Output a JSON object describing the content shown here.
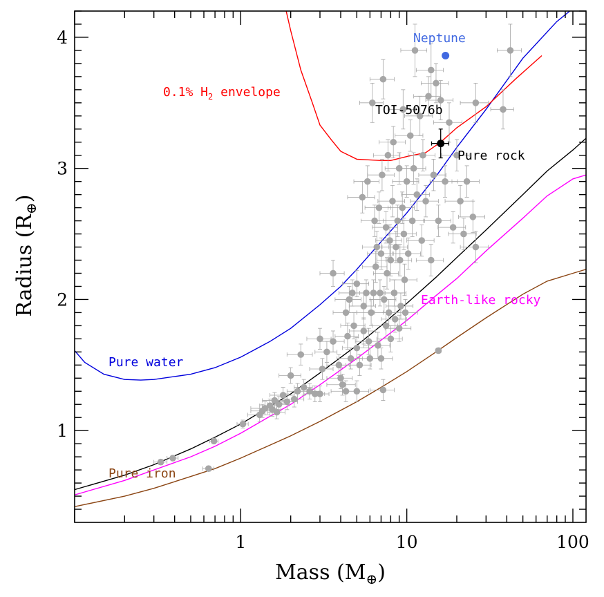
{
  "chart_data": {
    "type": "scatter",
    "xlabel": "Mass (M⊕)",
    "ylabel": "Radius (R⊕)",
    "xlabel_text": "Mass (M",
    "ylabel_text": "Radius (R",
    "x_scale": "log",
    "xlim": [
      0.1,
      120
    ],
    "ylim": [
      0.3,
      4.2
    ],
    "x_tick_labels": [
      "1",
      "10",
      "100"
    ],
    "y_tick_labels": [
      "1",
      "2",
      "3",
      "4"
    ],
    "grid": false,
    "colors": {
      "data_points": "#a6a6a6",
      "target": "#000000",
      "neptune": "#4169e1",
      "envelope": "#ff0000",
      "water": "#0000dd",
      "rock": "#000000",
      "earth_like": "#ff00ff",
      "iron": "#8b4513"
    },
    "target": {
      "label": "TOI-5076b",
      "mass": 16.0,
      "mass_err": 1.9,
      "radius": 3.19,
      "radius_err": 0.11
    },
    "neptune": {
      "label": "Neptune",
      "mass": 17.1,
      "radius": 3.86
    },
    "curves": [
      {
        "name": "Pure water",
        "color": "#0000dd",
        "points": [
          [
            0.1,
            1.61
          ],
          [
            0.115,
            1.52
          ],
          [
            0.15,
            1.43
          ],
          [
            0.2,
            1.39
          ],
          [
            0.25,
            1.385
          ],
          [
            0.3,
            1.39
          ],
          [
            0.5,
            1.43
          ],
          [
            0.7,
            1.48
          ],
          [
            1,
            1.56
          ],
          [
            1.5,
            1.68
          ],
          [
            2,
            1.78
          ],
          [
            3,
            1.96
          ],
          [
            4,
            2.1
          ],
          [
            5,
            2.23
          ],
          [
            7,
            2.44
          ],
          [
            10,
            2.66
          ],
          [
            15,
            2.94
          ],
          [
            20,
            3.16
          ],
          [
            30,
            3.45
          ],
          [
            50,
            3.84
          ],
          [
            80,
            4.12
          ],
          [
            120,
            4.3
          ]
        ]
      },
      {
        "name": "Pure rock",
        "color": "#000000",
        "points": [
          [
            0.1,
            0.55
          ],
          [
            0.2,
            0.66
          ],
          [
            0.3,
            0.74
          ],
          [
            0.5,
            0.86
          ],
          [
            0.7,
            0.95
          ],
          [
            1,
            1.05
          ],
          [
            2,
            1.28
          ],
          [
            3,
            1.44
          ],
          [
            5,
            1.65
          ],
          [
            7,
            1.8
          ],
          [
            10,
            1.97
          ],
          [
            15,
            2.17
          ],
          [
            20,
            2.32
          ],
          [
            30,
            2.53
          ],
          [
            50,
            2.8
          ],
          [
            70,
            2.98
          ],
          [
            100,
            3.14
          ],
          [
            120,
            3.23
          ]
        ]
      },
      {
        "name": "Earth-like rocky",
        "color": "#ff00ff",
        "points": [
          [
            0.1,
            0.51
          ],
          [
            0.2,
            0.62
          ],
          [
            0.3,
            0.7
          ],
          [
            0.5,
            0.8
          ],
          [
            0.7,
            0.88
          ],
          [
            1,
            0.98
          ],
          [
            2,
            1.2
          ],
          [
            3,
            1.35
          ],
          [
            5,
            1.55
          ],
          [
            7,
            1.69
          ],
          [
            10,
            1.84
          ],
          [
            15,
            2.03
          ],
          [
            20,
            2.16
          ],
          [
            30,
            2.37
          ],
          [
            50,
            2.62
          ],
          [
            70,
            2.79
          ],
          [
            100,
            2.92
          ],
          [
            120,
            2.95
          ]
        ]
      },
      {
        "name": "Pure iron",
        "color": "#8b4513",
        "points": [
          [
            0.1,
            0.42
          ],
          [
            0.2,
            0.5
          ],
          [
            0.3,
            0.56
          ],
          [
            0.5,
            0.65
          ],
          [
            0.7,
            0.71
          ],
          [
            1,
            0.79
          ],
          [
            2,
            0.96
          ],
          [
            3,
            1.07
          ],
          [
            5,
            1.22
          ],
          [
            7,
            1.33
          ],
          [
            10,
            1.45
          ],
          [
            15,
            1.6
          ],
          [
            20,
            1.71
          ],
          [
            30,
            1.86
          ],
          [
            50,
            2.04
          ],
          [
            70,
            2.14
          ],
          [
            100,
            2.2
          ],
          [
            120,
            2.23
          ]
        ]
      },
      {
        "name": "0.1% H2 envelope",
        "color": "#ff0000",
        "points": [
          [
            1.8,
            4.3
          ],
          [
            2.0,
            4.05
          ],
          [
            2.3,
            3.75
          ],
          [
            2.7,
            3.5
          ],
          [
            3.0,
            3.33
          ],
          [
            3.5,
            3.22
          ],
          [
            4.0,
            3.13
          ],
          [
            5.0,
            3.07
          ],
          [
            7.0,
            3.06
          ],
          [
            8.0,
            3.06
          ],
          [
            10,
            3.09
          ],
          [
            13,
            3.12
          ],
          [
            16,
            3.2
          ],
          [
            20,
            3.31
          ],
          [
            30,
            3.47
          ],
          [
            45,
            3.68
          ],
          [
            65,
            3.86
          ]
        ]
      }
    ],
    "planets": [
      [
        0.33,
        0.76,
        0.03,
        0.02
      ],
      [
        0.39,
        0.79,
        0.03,
        0.02
      ],
      [
        0.64,
        0.71,
        0.05,
        0.02
      ],
      [
        0.69,
        0.92,
        0.04,
        0.02
      ],
      [
        1.03,
        1.05,
        0.08,
        0.03
      ],
      [
        1.3,
        1.12,
        0.2,
        0.05
      ],
      [
        1.35,
        1.15,
        0.2,
        0.05
      ],
      [
        1.4,
        1.17,
        0.25,
        0.05
      ],
      [
        1.5,
        1.19,
        0.2,
        0.05
      ],
      [
        1.55,
        1.16,
        0.2,
        0.05
      ],
      [
        1.6,
        1.23,
        0.25,
        0.06
      ],
      [
        1.65,
        1.14,
        0.2,
        0.05
      ],
      [
        1.7,
        1.2,
        0.25,
        0.06
      ],
      [
        1.8,
        1.27,
        0.3,
        0.06
      ],
      [
        1.9,
        1.22,
        0.3,
        0.06
      ],
      [
        2.0,
        1.42,
        0.3,
        0.06
      ],
      [
        2.1,
        1.24,
        0.3,
        0.06
      ],
      [
        2.2,
        1.3,
        0.3,
        0.06
      ],
      [
        2.3,
        1.58,
        0.4,
        0.08
      ],
      [
        2.4,
        1.33,
        0.3,
        0.06
      ],
      [
        2.6,
        1.3,
        0.4,
        0.06
      ],
      [
        2.8,
        1.28,
        0.4,
        0.06
      ],
      [
        3.0,
        1.28,
        0.4,
        0.06
      ],
      [
        3.0,
        1.7,
        0.5,
        0.08
      ],
      [
        3.1,
        1.47,
        0.5,
        0.08
      ],
      [
        3.3,
        1.6,
        0.5,
        0.08
      ],
      [
        3.6,
        1.68,
        0.6,
        0.08
      ],
      [
        3.6,
        2.2,
        0.6,
        0.1
      ],
      [
        3.9,
        1.5,
        0.6,
        0.08
      ],
      [
        4.0,
        1.4,
        0.7,
        0.08
      ],
      [
        4.1,
        1.35,
        0.8,
        0.08
      ],
      [
        4.3,
        1.3,
        0.8,
        0.08
      ],
      [
        4.3,
        1.9,
        0.7,
        0.1
      ],
      [
        4.4,
        1.72,
        0.7,
        0.1
      ],
      [
        4.5,
        2.0,
        0.8,
        0.1
      ],
      [
        4.6,
        1.55,
        0.8,
        0.08
      ],
      [
        4.7,
        2.05,
        0.8,
        0.1
      ],
      [
        4.8,
        1.8,
        0.8,
        0.1
      ],
      [
        5.0,
        1.63,
        0.9,
        0.08
      ],
      [
        5.0,
        1.3,
        0.9,
        0.08
      ],
      [
        5.0,
        2.12,
        0.9,
        0.1
      ],
      [
        5.2,
        1.5,
        0.9,
        0.08
      ],
      [
        5.4,
        2.78,
        1.0,
        0.12
      ],
      [
        5.5,
        1.95,
        1.0,
        0.1
      ],
      [
        5.5,
        1.76,
        1.0,
        0.1
      ],
      [
        5.7,
        2.05,
        1.0,
        0.1
      ],
      [
        5.8,
        2.9,
        1.0,
        0.12
      ],
      [
        5.9,
        1.68,
        1.0,
        0.1
      ],
      [
        6.0,
        1.55,
        1.0,
        0.08
      ],
      [
        6.1,
        1.9,
        1.1,
        0.1
      ],
      [
        6.2,
        3.5,
        1.0,
        0.15
      ],
      [
        6.3,
        2.05,
        1.1,
        0.1
      ],
      [
        6.4,
        2.6,
        1.1,
        0.12
      ],
      [
        6.5,
        2.25,
        1.1,
        0.12
      ],
      [
        6.6,
        2.4,
        1.2,
        0.12
      ],
      [
        6.7,
        1.65,
        1.2,
        0.1
      ],
      [
        6.8,
        2.7,
        1.2,
        0.12
      ],
      [
        6.9,
        2.05,
        1.2,
        0.1
      ],
      [
        7.0,
        1.55,
        1.2,
        0.08
      ],
      [
        7.0,
        2.35,
        1.2,
        0.12
      ],
      [
        7.1,
        2.95,
        1.3,
        0.12
      ],
      [
        7.2,
        3.68,
        1.2,
        0.15
      ],
      [
        7.2,
        1.31,
        1.2,
        0.08
      ],
      [
        7.3,
        2.0,
        1.3,
        0.1
      ],
      [
        7.5,
        2.55,
        1.3,
        0.12
      ],
      [
        7.5,
        1.8,
        1.3,
        0.1
      ],
      [
        7.6,
        2.2,
        1.3,
        0.12
      ],
      [
        7.7,
        3.1,
        1.4,
        0.12
      ],
      [
        7.8,
        1.9,
        1.4,
        0.1
      ],
      [
        7.9,
        2.45,
        1.4,
        0.12
      ],
      [
        8.0,
        2.3,
        1.4,
        0.12
      ],
      [
        8.0,
        1.7,
        1.4,
        0.1
      ],
      [
        8.2,
        2.75,
        1.5,
        0.12
      ],
      [
        8.3,
        3.2,
        1.5,
        0.12
      ],
      [
        8.4,
        2.05,
        1.5,
        0.1
      ],
      [
        8.5,
        1.85,
        1.5,
        0.1
      ],
      [
        8.6,
        2.4,
        1.5,
        0.12
      ],
      [
        8.8,
        2.6,
        1.6,
        0.12
      ],
      [
        9.0,
        3.0,
        1.6,
        0.12
      ],
      [
        9.0,
        1.78,
        1.6,
        0.1
      ],
      [
        9.1,
        2.3,
        1.6,
        0.12
      ],
      [
        9.2,
        1.95,
        1.7,
        0.1
      ],
      [
        9.4,
        2.7,
        1.7,
        0.12
      ],
      [
        9.5,
        3.45,
        1.8,
        0.15
      ],
      [
        9.6,
        2.5,
        1.8,
        0.12
      ],
      [
        9.7,
        2.15,
        1.8,
        0.12
      ],
      [
        9.8,
        1.9,
        1.8,
        0.1
      ],
      [
        10.0,
        2.9,
        1.8,
        0.12
      ],
      [
        10.2,
        2.35,
        1.9,
        0.12
      ],
      [
        10.5,
        3.25,
        2.0,
        0.12
      ],
      [
        10.8,
        2.6,
        2.0,
        0.12
      ],
      [
        11.0,
        3.0,
        2.0,
        0.12
      ],
      [
        11.2,
        3.9,
        2.0,
        0.2
      ],
      [
        11.5,
        2.8,
        2.2,
        0.12
      ],
      [
        12.0,
        3.4,
        2.3,
        0.15
      ],
      [
        12.3,
        2.45,
        2.3,
        0.12
      ],
      [
        12.5,
        3.1,
        2.3,
        0.12
      ],
      [
        13.0,
        2.75,
        2.5,
        0.12
      ],
      [
        13.5,
        3.55,
        2.5,
        0.15
      ],
      [
        14.0,
        2.3,
        2.6,
        0.12
      ],
      [
        14.0,
        3.75,
        2.6,
        0.2
      ],
      [
        14.5,
        2.95,
        2.7,
        0.12
      ],
      [
        15.0,
        3.65,
        2.8,
        0.15
      ],
      [
        15.5,
        2.6,
        2.9,
        0.12
      ],
      [
        16.0,
        3.52,
        3.0,
        0.15
      ],
      [
        17.0,
        2.9,
        3.2,
        0.12
      ],
      [
        18.0,
        3.35,
        3.5,
        0.15
      ],
      [
        19.0,
        2.55,
        3.6,
        0.12
      ],
      [
        20.0,
        3.1,
        3.8,
        0.12
      ],
      [
        21.0,
        2.75,
        4.0,
        0.12
      ],
      [
        22.0,
        2.5,
        4.2,
        0.12
      ],
      [
        23.0,
        2.9,
        4.3,
        0.12
      ],
      [
        25.0,
        2.63,
        4.5,
        0.12
      ],
      [
        26.0,
        3.5,
        5.0,
        0.15
      ],
      [
        26.0,
        2.4,
        5.0,
        0.12
      ],
      [
        38.0,
        3.45,
        6.0,
        0.15
      ],
      [
        42.0,
        3.9,
        7.0,
        0.2
      ],
      [
        15.5,
        1.61,
        0.6,
        0.02
      ]
    ],
    "annotations": [
      {
        "text": "Pure water",
        "color": "#0000dd"
      },
      {
        "text": "Pure rock",
        "color": "#000000"
      },
      {
        "text": "Earth-like rocky",
        "color": "#ff00ff"
      },
      {
        "text": "Pure iron",
        "color": "#8b4513"
      },
      {
        "text": "0.1% H",
        "sub": "2",
        "tail": " envelope",
        "color": "#ff0000"
      }
    ]
  }
}
